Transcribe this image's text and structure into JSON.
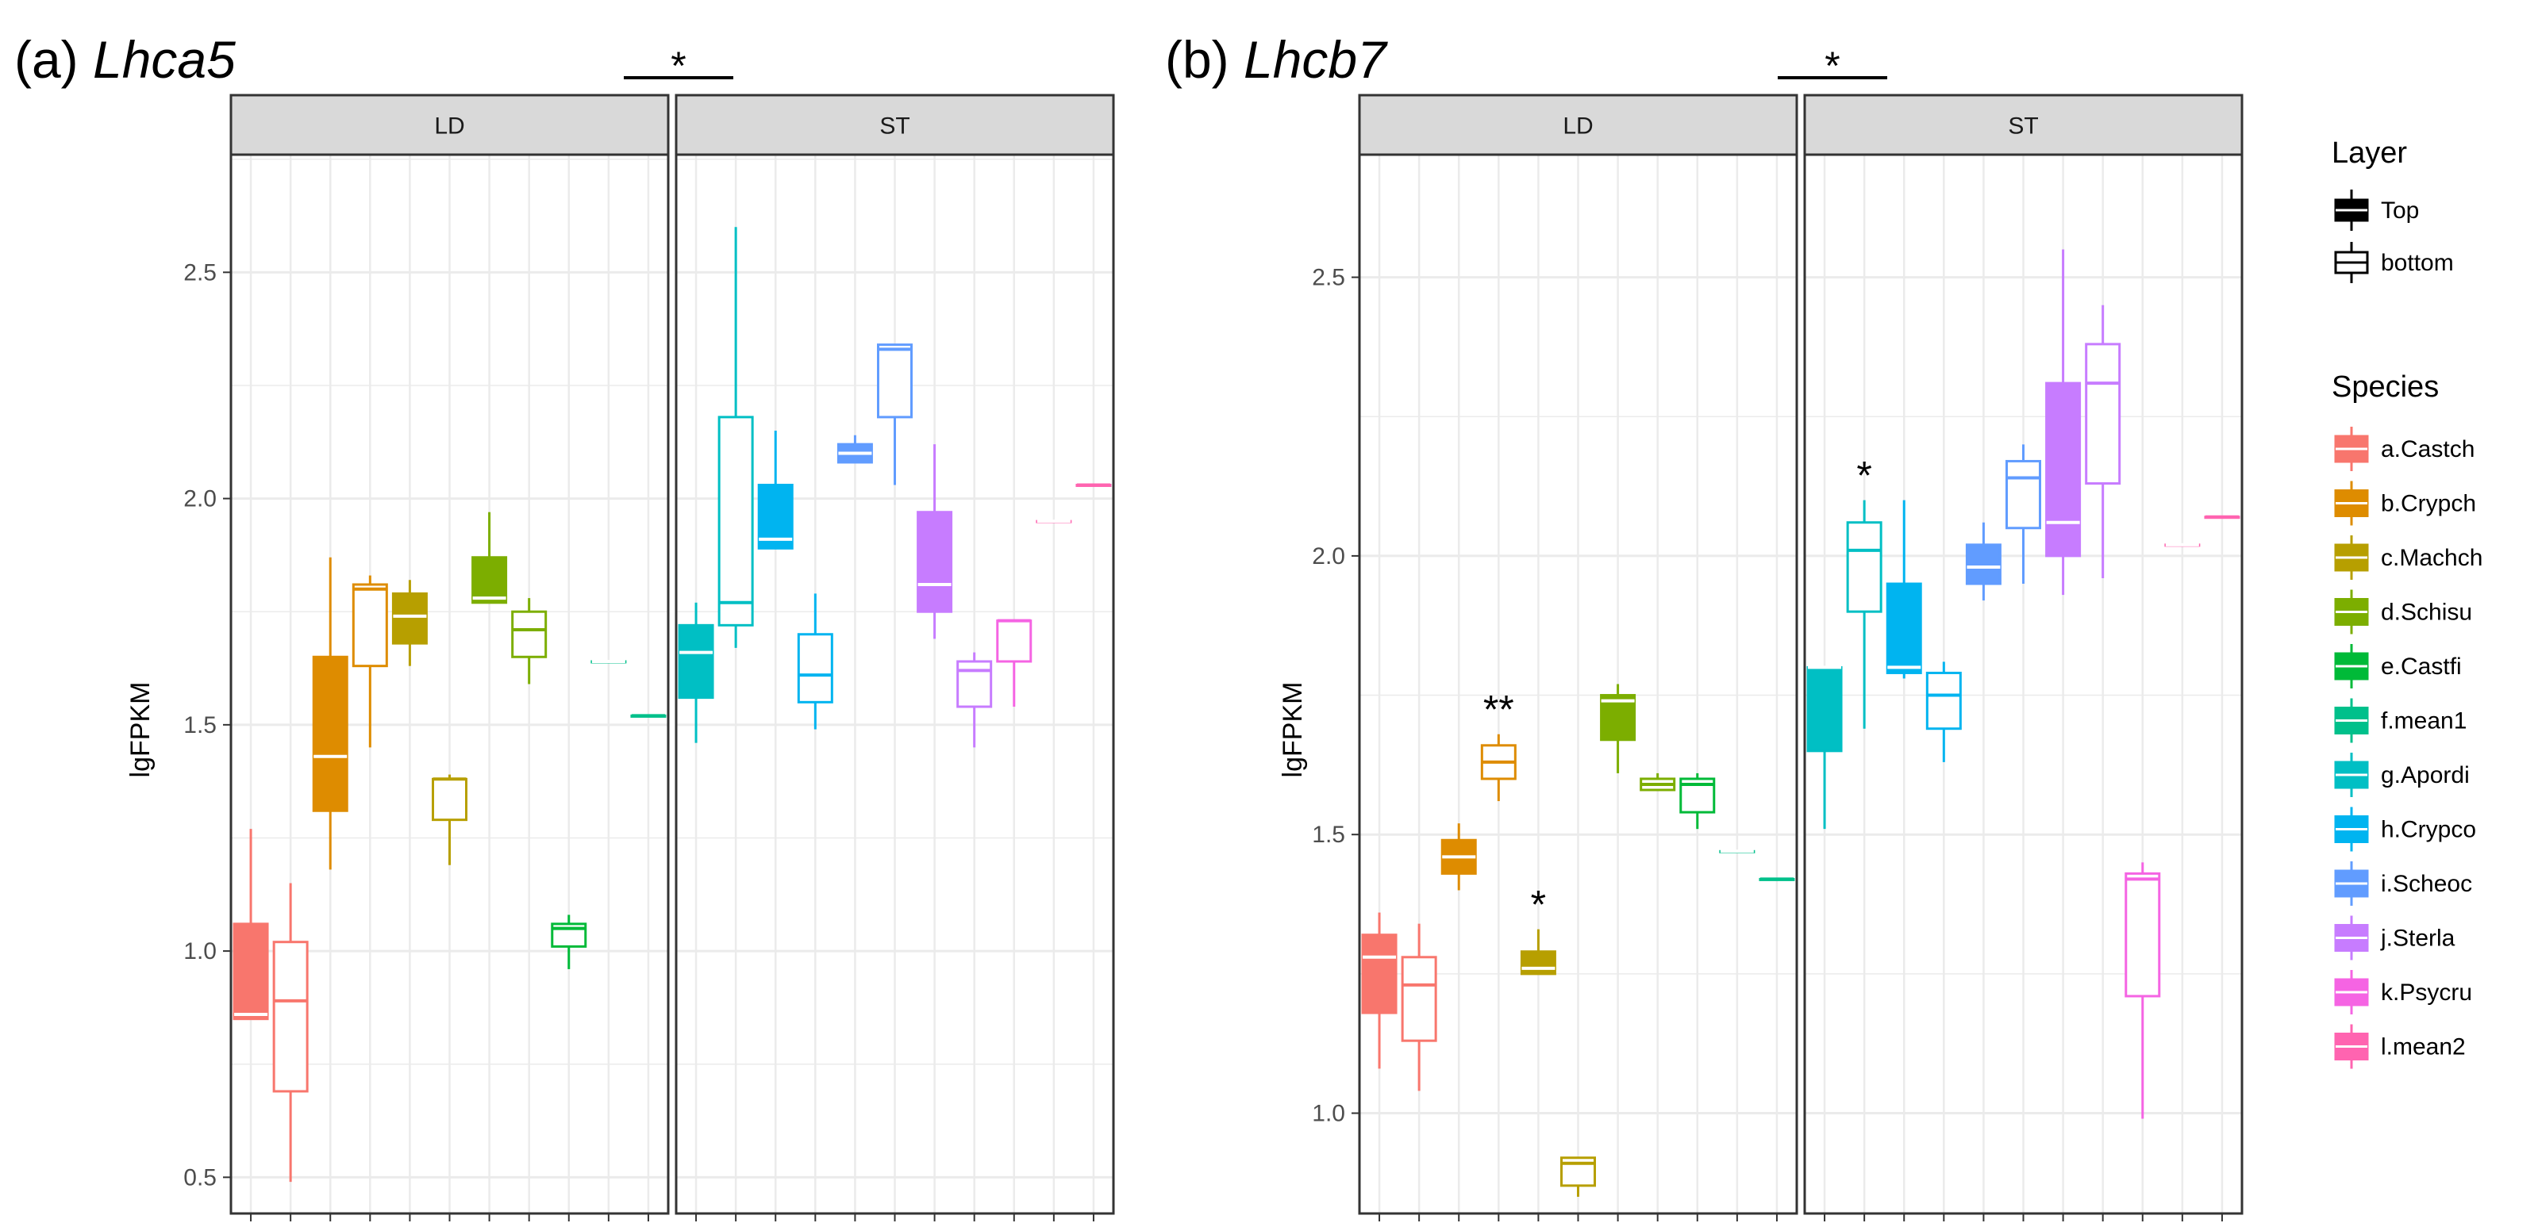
{
  "chart_data": [
    {
      "type": "box",
      "panel_label": "(a)",
      "gene": "Lhca5",
      "ylabel": "lgFPKM",
      "ylim": [
        0.42,
        2.76
      ],
      "yticks": [
        "0.5",
        "1.0",
        "1.5",
        "2.0",
        "2.5"
      ],
      "facet_annotation": "*",
      "facets": [
        {
          "label": "LD",
          "boxes": [
            {
              "species": "a.Castch",
              "layer": "Top",
              "min": 0.85,
              "q1": 0.85,
              "median": 0.86,
              "q3": 1.06,
              "max": 1.27
            },
            {
              "species": "a.Castch",
              "layer": "bottom",
              "min": 0.49,
              "q1": 0.69,
              "median": 0.89,
              "q3": 1.02,
              "max": 1.15
            },
            {
              "species": "b.Crypch",
              "layer": "Top",
              "min": 1.18,
              "q1": 1.31,
              "median": 1.43,
              "q3": 1.65,
              "max": 1.87
            },
            {
              "species": "b.Crypch",
              "layer": "bottom",
              "min": 1.45,
              "q1": 1.63,
              "median": 1.8,
              "q3": 1.81,
              "max": 1.83
            },
            {
              "species": "c.Machch",
              "layer": "Top",
              "min": 1.63,
              "q1": 1.68,
              "median": 1.74,
              "q3": 1.79,
              "max": 1.82
            },
            {
              "species": "c.Machch",
              "layer": "bottom",
              "min": 1.19,
              "q1": 1.29,
              "median": 1.38,
              "q3": 1.38,
              "max": 1.39
            },
            {
              "species": "d.Schisu",
              "layer": "Top",
              "min": 1.77,
              "q1": 1.77,
              "median": 1.78,
              "q3": 1.87,
              "max": 1.97
            },
            {
              "species": "d.Schisu",
              "layer": "bottom",
              "min": 1.59,
              "q1": 1.65,
              "median": 1.71,
              "q3": 1.75,
              "max": 1.78
            },
            {
              "species": "e.Castfi",
              "layer": "bottom",
              "min": 0.96,
              "q1": 1.01,
              "median": 1.05,
              "q3": 1.06,
              "max": 1.08
            },
            {
              "species": "f.mean1",
              "layer": "Top",
              "min": 1.64,
              "q1": 1.64,
              "median": 1.64,
              "q3": 1.64,
              "max": 1.64
            },
            {
              "species": "f.mean1",
              "layer": "bottom",
              "min": 1.52,
              "q1": 1.52,
              "median": 1.52,
              "q3": 1.52,
              "max": 1.52
            }
          ]
        },
        {
          "label": "ST",
          "boxes": [
            {
              "species": "g.Apordi",
              "layer": "Top",
              "min": 1.46,
              "q1": 1.56,
              "median": 1.66,
              "q3": 1.72,
              "max": 1.77
            },
            {
              "species": "g.Apordi",
              "layer": "bottom",
              "min": 1.67,
              "q1": 1.72,
              "median": 1.77,
              "q3": 2.18,
              "max": 2.6
            },
            {
              "species": "h.Crypco",
              "layer": "Top",
              "min": 1.89,
              "q1": 1.89,
              "median": 1.91,
              "q3": 2.03,
              "max": 2.15
            },
            {
              "species": "h.Crypco",
              "layer": "bottom",
              "min": 1.49,
              "q1": 1.55,
              "median": 1.61,
              "q3": 1.7,
              "max": 1.79
            },
            {
              "species": "i.Scheoc",
              "layer": "Top",
              "min": 2.08,
              "q1": 2.08,
              "median": 2.1,
              "q3": 2.12,
              "max": 2.14
            },
            {
              "species": "i.Scheoc",
              "layer": "bottom",
              "min": 2.03,
              "q1": 2.18,
              "median": 2.33,
              "q3": 2.34,
              "max": 2.34
            },
            {
              "species": "j.Sterla",
              "layer": "Top",
              "min": 1.69,
              "q1": 1.75,
              "median": 1.81,
              "q3": 1.97,
              "max": 2.12
            },
            {
              "species": "j.Sterla",
              "layer": "bottom",
              "min": 1.45,
              "q1": 1.54,
              "median": 1.62,
              "q3": 1.64,
              "max": 1.66
            },
            {
              "species": "k.Psycru",
              "layer": "bottom",
              "min": 1.54,
              "q1": 1.64,
              "median": 1.73,
              "q3": 1.73,
              "max": 1.73
            },
            {
              "species": "l.mean2",
              "layer": "Top",
              "min": 1.95,
              "q1": 1.95,
              "median": 1.95,
              "q3": 1.95,
              "max": 1.95
            },
            {
              "species": "l.mean2",
              "layer": "bottom",
              "min": 2.03,
              "q1": 2.03,
              "median": 2.03,
              "q3": 2.03,
              "max": 2.03
            }
          ]
        }
      ]
    },
    {
      "type": "box",
      "panel_label": "(b)",
      "gene": "Lhcb7",
      "ylabel": "lgFPKM",
      "ylim": [
        0.82,
        2.72
      ],
      "yticks": [
        "1.0",
        "1.5",
        "2.0",
        "2.5"
      ],
      "facet_annotation": "*",
      "facets": [
        {
          "label": "LD",
          "boxes": [
            {
              "species": "a.Castch",
              "layer": "Top",
              "min": 1.08,
              "q1": 1.18,
              "median": 1.28,
              "q3": 1.32,
              "max": 1.36
            },
            {
              "species": "a.Castch",
              "layer": "bottom",
              "min": 1.04,
              "q1": 1.13,
              "median": 1.23,
              "q3": 1.28,
              "max": 1.34
            },
            {
              "species": "b.Crypch",
              "layer": "Top",
              "min": 1.4,
              "q1": 1.43,
              "median": 1.46,
              "q3": 1.49,
              "max": 1.52
            },
            {
              "species": "b.Crypch",
              "layer": "bottom",
              "min": 1.56,
              "q1": 1.6,
              "median": 1.63,
              "q3": 1.66,
              "max": 1.68,
              "annotation": "**"
            },
            {
              "species": "c.Machch",
              "layer": "Top",
              "min": 1.25,
              "q1": 1.25,
              "median": 1.26,
              "q3": 1.29,
              "max": 1.33,
              "annotation": "*"
            },
            {
              "species": "c.Machch",
              "layer": "bottom",
              "min": 0.85,
              "q1": 0.87,
              "median": 0.91,
              "q3": 0.92,
              "max": 0.92
            },
            {
              "species": "d.Schisu",
              "layer": "Top",
              "min": 1.61,
              "q1": 1.67,
              "median": 1.74,
              "q3": 1.75,
              "max": 1.77
            },
            {
              "species": "d.Schisu",
              "layer": "bottom",
              "min": 1.58,
              "q1": 1.58,
              "median": 1.59,
              "q3": 1.6,
              "max": 1.61
            },
            {
              "species": "e.Castfi",
              "layer": "bottom",
              "min": 1.51,
              "q1": 1.54,
              "median": 1.59,
              "q3": 1.6,
              "max": 1.61
            },
            {
              "species": "f.mean1",
              "layer": "Top",
              "min": 1.47,
              "q1": 1.47,
              "median": 1.47,
              "q3": 1.47,
              "max": 1.47
            },
            {
              "species": "f.mean1",
              "layer": "bottom",
              "min": 1.42,
              "q1": 1.42,
              "median": 1.42,
              "q3": 1.42,
              "max": 1.42
            }
          ]
        },
        {
          "label": "ST",
          "boxes": [
            {
              "species": "g.Apordi",
              "layer": "Top",
              "min": 1.51,
              "q1": 1.65,
              "median": 1.8,
              "q3": 1.8,
              "max": 1.8
            },
            {
              "species": "g.Apordi",
              "layer": "bottom",
              "min": 1.69,
              "q1": 1.9,
              "median": 2.01,
              "q3": 2.06,
              "max": 2.1,
              "annotation": "*"
            },
            {
              "species": "h.Crypco",
              "layer": "Top",
              "min": 1.78,
              "q1": 1.79,
              "median": 1.8,
              "q3": 1.95,
              "max": 2.1
            },
            {
              "species": "h.Crypco",
              "layer": "bottom",
              "min": 1.63,
              "q1": 1.69,
              "median": 1.75,
              "q3": 1.79,
              "max": 1.81
            },
            {
              "species": "i.Scheoc",
              "layer": "Top",
              "min": 1.92,
              "q1": 1.95,
              "median": 1.98,
              "q3": 2.02,
              "max": 2.06
            },
            {
              "species": "i.Scheoc",
              "layer": "bottom",
              "min": 1.95,
              "q1": 2.05,
              "median": 2.14,
              "q3": 2.17,
              "max": 2.2
            },
            {
              "species": "j.Sterla",
              "layer": "Top",
              "min": 1.93,
              "q1": 2.0,
              "median": 2.06,
              "q3": 2.31,
              "max": 2.55
            },
            {
              "species": "j.Sterla",
              "layer": "bottom",
              "min": 1.96,
              "q1": 2.13,
              "median": 2.31,
              "q3": 2.38,
              "max": 2.45
            },
            {
              "species": "k.Psycru",
              "layer": "bottom",
              "min": 0.99,
              "q1": 1.21,
              "median": 1.42,
              "q3": 1.43,
              "max": 1.45
            },
            {
              "species": "l.mean2",
              "layer": "Top",
              "min": 2.02,
              "q1": 2.02,
              "median": 2.02,
              "q3": 2.02,
              "max": 2.02
            },
            {
              "species": "l.mean2",
              "layer": "bottom",
              "min": 2.07,
              "q1": 2.07,
              "median": 2.07,
              "q3": 2.07,
              "max": 2.07
            }
          ]
        }
      ]
    }
  ],
  "legend": {
    "layer": {
      "title": "Layer",
      "items": [
        {
          "label": "Top",
          "filled": true
        },
        {
          "label": "bottom",
          "filled": false
        }
      ]
    },
    "species": {
      "title": "Species",
      "items": [
        {
          "label": "a.Castch",
          "color": "#F8766D"
        },
        {
          "label": "b.Crypch",
          "color": "#DE8C00"
        },
        {
          "label": "c.Machch",
          "color": "#B79F00"
        },
        {
          "label": "d.Schisu",
          "color": "#7CAE00"
        },
        {
          "label": "e.Castfi",
          "color": "#00BA38"
        },
        {
          "label": "f.mean1",
          "color": "#00C08B"
        },
        {
          "label": "g.Apordi",
          "color": "#00BFC4"
        },
        {
          "label": "h.Crypco",
          "color": "#00B4F0"
        },
        {
          "label": "i.Scheoc",
          "color": "#619CFF"
        },
        {
          "label": "j.Sterla",
          "color": "#C77CFF"
        },
        {
          "label": "k.Psycru",
          "color": "#F564E3"
        },
        {
          "label": "l.mean2",
          "color": "#FF64B0"
        }
      ]
    }
  },
  "style": {
    "panel_background": "#ffffff",
    "grid_color": "#ebebeb",
    "strip_background": "#d9d9d9",
    "border_color": "#333333",
    "median_color": "#ffffff"
  }
}
